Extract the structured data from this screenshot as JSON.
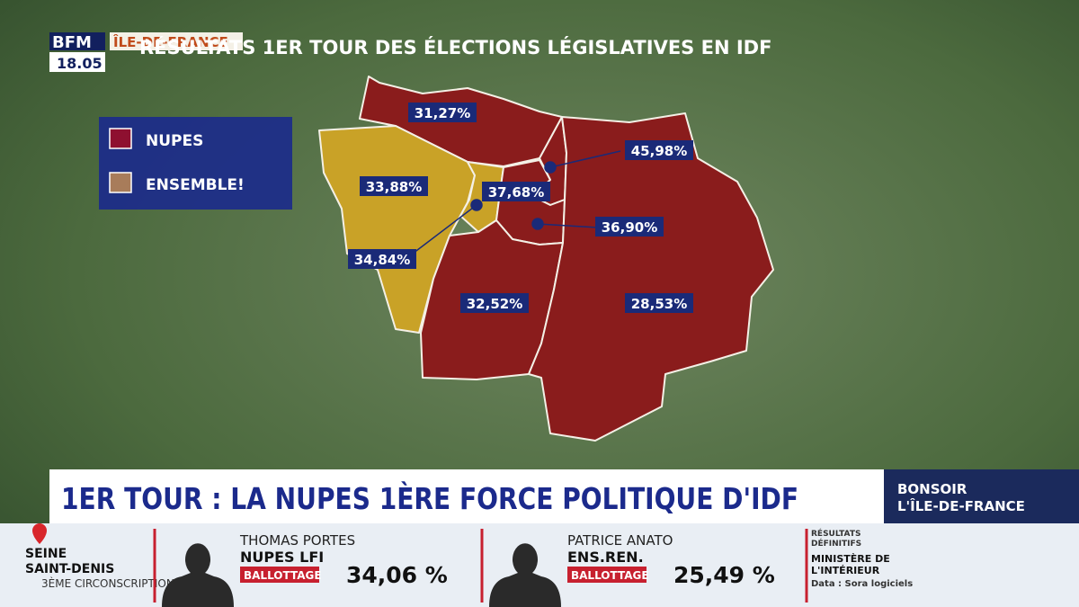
{
  "header": {
    "channel": "BFM",
    "time": "18.05",
    "region": "ÎLE-DE-FRANCE",
    "title": "RÉSULTATS 1ER TOUR DES ÉLECTIONS LÉGISLATIVES EN IDF"
  },
  "legend": [
    {
      "label": "NUPES",
      "color": "#8e1030"
    },
    {
      "label": "ENSEMBLE!",
      "color": "#a87c5a"
    }
  ],
  "map": {
    "departments": [
      {
        "label": "31,27%",
        "bloc": 0
      },
      {
        "label": "33,88%",
        "bloc": 1
      },
      {
        "label": "34,84%",
        "bloc": 1
      },
      {
        "label": "37,68%",
        "bloc": 0
      },
      {
        "label": "45,98%",
        "bloc": 0
      },
      {
        "label": "36,90%",
        "bloc": 0
      },
      {
        "label": "32,52%",
        "bloc": 0
      },
      {
        "label": "28,53%",
        "bloc": 0
      }
    ]
  },
  "banner": {
    "headline": "1ER TOUR : LA NUPES 1ÈRE FORCE POLITIQUE D'IDF",
    "show_line1": "BONSOIR",
    "show_line2": "L'ÎLE-DE-FRANCE"
  },
  "ticker": {
    "department_line1": "SEINE",
    "department_line2": "SAINT-DENIS",
    "district": "3ÈME CIRCONSCRIPTION",
    "candidates": [
      {
        "name": "THOMAS PORTES",
        "party": "NUPES LFI",
        "status": "BALLOTTAGE",
        "score": "34,06 %"
      },
      {
        "name": "PATRICE ANATO",
        "party": "ENS.REN.",
        "status": "BALLOTTAGE",
        "score": "25,49 %"
      }
    ],
    "source_line1": "RÉSULTATS",
    "source_line2": "DÉFINITIFS",
    "source_line3": "MINISTÈRE DE",
    "source_line4": "L'INTÉRIEUR",
    "source_line5": "Data : Sora logiciels"
  }
}
